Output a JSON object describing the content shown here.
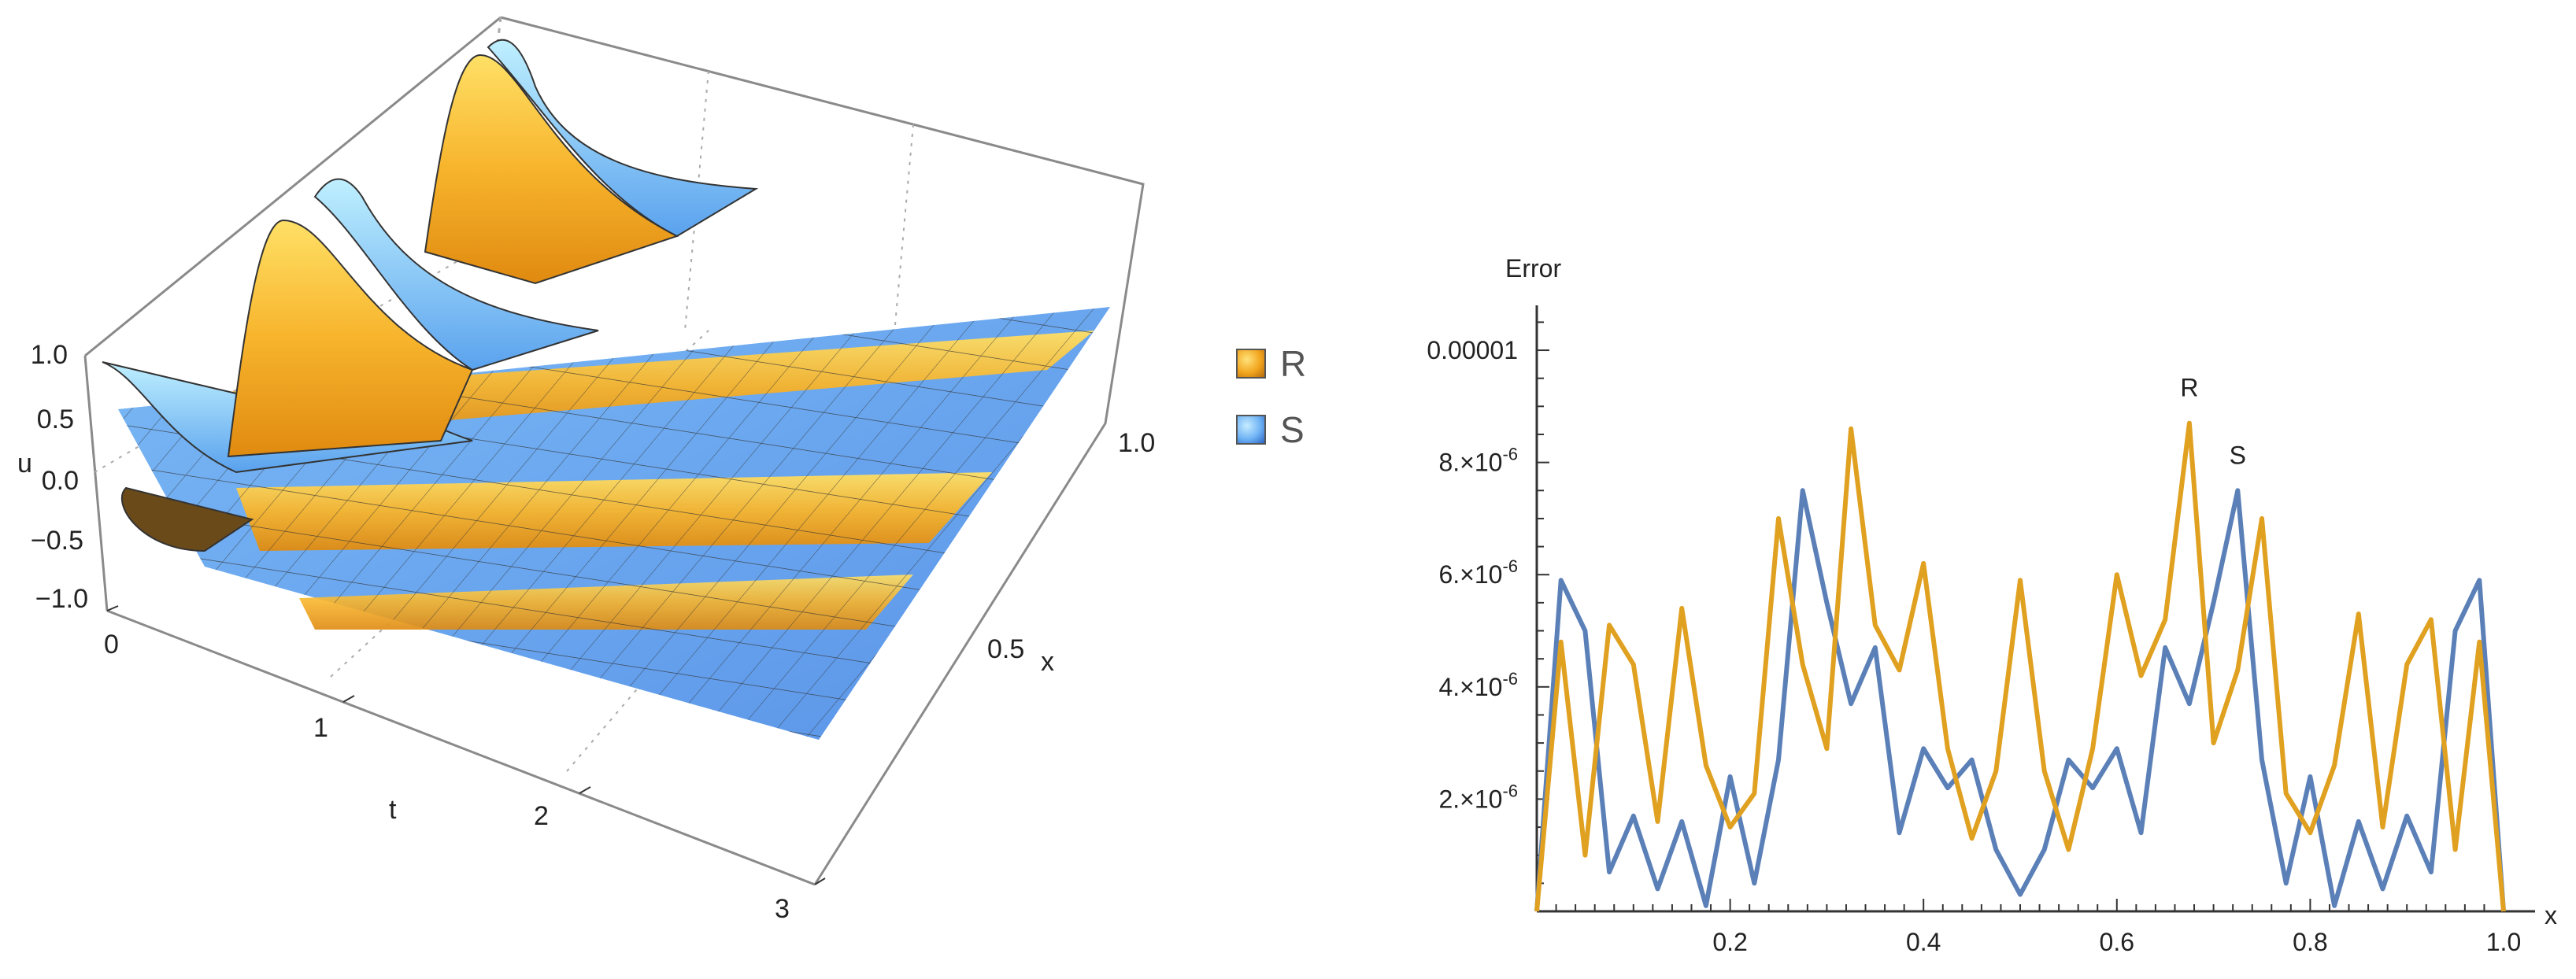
{
  "legend": {
    "items": [
      {
        "label": "R",
        "color": "#f5a623"
      },
      {
        "label": "S",
        "color": "#6aa7f0"
      }
    ]
  },
  "plot3d": {
    "axes": {
      "t_label": "t",
      "x_label": "x",
      "u_label": "u"
    },
    "t_ticks": [
      "0",
      "1",
      "2",
      "3"
    ],
    "x_ticks": [
      "0.5",
      "1.0"
    ],
    "u_ticks": [
      "1.0",
      "0.5",
      "0.0",
      "−0.5",
      "−1.0"
    ],
    "surfaces": [
      {
        "name": "R",
        "color": "#f5a623"
      },
      {
        "name": "S",
        "color": "#6aa7f0"
      }
    ]
  },
  "chart_data": {
    "type": "line",
    "title": "",
    "xlabel": "x",
    "ylabel": "Error",
    "xlim": [
      0,
      1.0
    ],
    "ylim": [
      0,
      1.08e-05
    ],
    "x_ticks": [
      "0.2",
      "0.4",
      "0.6",
      "0.8",
      "1.0"
    ],
    "y_ticks": [
      {
        "value": 2e-06,
        "base": "2.×10",
        "exp": "-6"
      },
      {
        "value": 4e-06,
        "base": "4.×10",
        "exp": "-6"
      },
      {
        "value": 6e-06,
        "base": "6.×10",
        "exp": "-6"
      },
      {
        "value": 8e-06,
        "base": "8.×10",
        "exp": "-6"
      },
      {
        "value": 1e-05,
        "text": "0.00001"
      }
    ],
    "x": [
      0,
      0.025,
      0.05,
      0.075,
      0.1,
      0.125,
      0.15,
      0.175,
      0.2,
      0.225,
      0.25,
      0.275,
      0.3,
      0.325,
      0.35,
      0.375,
      0.4,
      0.425,
      0.45,
      0.475,
      0.5,
      0.525,
      0.55,
      0.575,
      0.6,
      0.625,
      0.65,
      0.675,
      0.7,
      0.725,
      0.75,
      0.775,
      0.8,
      0.825,
      0.85,
      0.875,
      0.9,
      0.925,
      0.95,
      0.975,
      1.0
    ],
    "series": [
      {
        "name": "S",
        "color": "#5b80b8",
        "values": [
          0,
          5.9e-06,
          5e-06,
          7e-07,
          1.7e-06,
          4e-07,
          1.6e-06,
          1e-07,
          2.4e-06,
          5e-07,
          2.7e-06,
          7.5e-06,
          5.5e-06,
          3.7e-06,
          4.7e-06,
          1.4e-06,
          2.9e-06,
          2.2e-06,
          2.7e-06,
          1.1e-06,
          3e-07,
          1.1e-06,
          2.7e-06,
          2.2e-06,
          2.9e-06,
          1.4e-06,
          4.7e-06,
          3.7e-06,
          5.5e-06,
          7.5e-06,
          2.7e-06,
          5e-07,
          2.4e-06,
          1e-07,
          1.6e-06,
          4e-07,
          1.7e-06,
          7e-07,
          5e-06,
          5.9e-06,
          0
        ]
      },
      {
        "name": "R",
        "color": "#e0a020",
        "values": [
          0,
          4.8e-06,
          1e-06,
          5.1e-06,
          4.4e-06,
          1.6e-06,
          5.4e-06,
          2.6e-06,
          1.5e-06,
          2.1e-06,
          7e-06,
          4.4e-06,
          2.9e-06,
          8.6e-06,
          5.1e-06,
          4.3e-06,
          6.2e-06,
          2.9e-06,
          1.3e-06,
          2.5e-06,
          5.9e-06,
          2.5e-06,
          1.1e-06,
          2.9e-06,
          6e-06,
          4.2e-06,
          5.2e-06,
          8.7e-06,
          3e-06,
          4.3e-06,
          7e-06,
          2.1e-06,
          1.4e-06,
          2.6e-06,
          5.3e-06,
          1.5e-06,
          4.4e-06,
          5.2e-06,
          1.1e-06,
          4.8e-06,
          0
        ]
      }
    ],
    "annotations": [
      {
        "text": "S",
        "series": "S"
      },
      {
        "text": "R",
        "series": "R"
      }
    ]
  }
}
